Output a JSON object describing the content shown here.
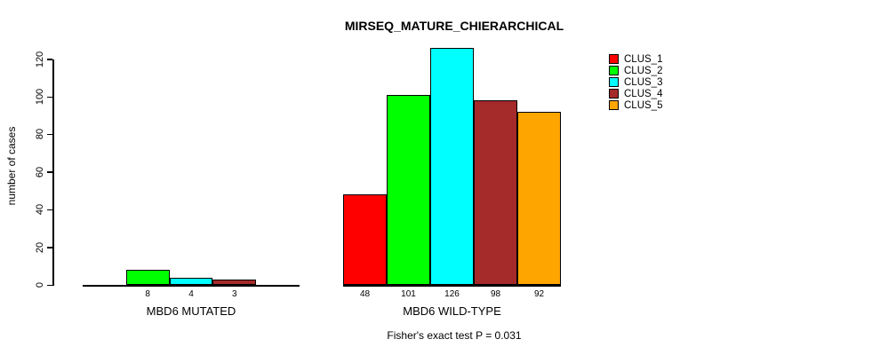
{
  "chart_data": {
    "type": "bar",
    "title": "MIRSEQ_MATURE_CHIERARCHICAL",
    "ylabel": "number of cases",
    "xlabel": "",
    "ylim": [
      0,
      120
    ],
    "yticks": [
      0,
      20,
      40,
      60,
      80,
      100,
      120
    ],
    "grid": false,
    "legend_position": "top-right",
    "bar_value_labels_shown": true,
    "zero_bars_hidden": true,
    "categories": [
      "MBD6 MUTATED",
      "MBD6 WILD-TYPE"
    ],
    "series": [
      {
        "name": "CLUS_1",
        "color": "#ff0000",
        "values": [
          0,
          48
        ]
      },
      {
        "name": "CLUS_2",
        "color": "#00ff00",
        "values": [
          8,
          101
        ]
      },
      {
        "name": "CLUS_3",
        "color": "#00ffff",
        "values": [
          4,
          126
        ]
      },
      {
        "name": "CLUS_4",
        "color": "#a52a2a",
        "values": [
          3,
          98
        ]
      },
      {
        "name": "CLUS_5",
        "color": "#ffa500",
        "values": [
          0,
          92
        ]
      }
    ],
    "annotation": "Fisher's exact test P = 0.031",
    "text_color": "#000000",
    "axis_color": "#000000"
  }
}
